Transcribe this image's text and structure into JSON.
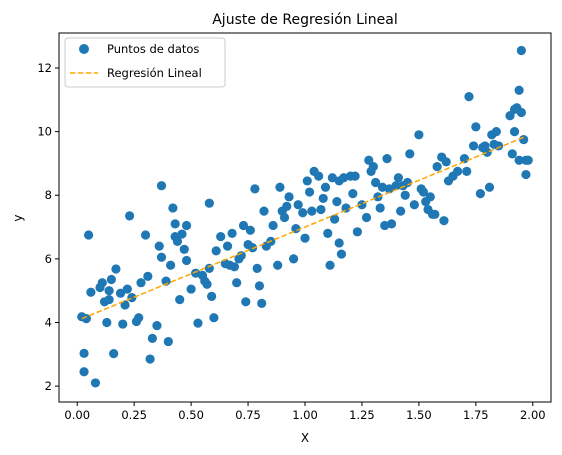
{
  "chart_data": {
    "type": "scatter",
    "title": "Ajuste de Regresión Lineal",
    "xlabel": "X",
    "ylabel": "y",
    "xlim": [
      -0.08,
      2.08
    ],
    "ylim": [
      1.5,
      13.1
    ],
    "xticks": [
      0.0,
      0.25,
      0.5,
      0.75,
      1.0,
      1.25,
      1.5,
      1.75,
      2.0
    ],
    "xtick_labels": [
      "0.00",
      "0.25",
      "0.50",
      "0.75",
      "1.00",
      "1.25",
      "1.50",
      "1.75",
      "2.00"
    ],
    "yticks": [
      2,
      4,
      6,
      8,
      10,
      12
    ],
    "ytick_labels": [
      "2",
      "4",
      "6",
      "8",
      "10",
      "12"
    ],
    "grid": false,
    "legend_position": "upper-left",
    "colors": {
      "points": "#1f77b4",
      "regression": "#ffa500"
    },
    "series": [
      {
        "name": "Puntos de datos",
        "kind": "scatter",
        "points": [
          [
            0.02,
            4.18
          ],
          [
            0.03,
            2.45
          ],
          [
            0.03,
            3.03
          ],
          [
            0.04,
            4.12
          ],
          [
            0.05,
            6.75
          ],
          [
            0.06,
            4.95
          ],
          [
            0.08,
            2.1
          ],
          [
            0.1,
            5.1
          ],
          [
            0.11,
            5.25
          ],
          [
            0.12,
            4.65
          ],
          [
            0.13,
            4.0
          ],
          [
            0.14,
            4.72
          ],
          [
            0.14,
            5.0
          ],
          [
            0.15,
            5.35
          ],
          [
            0.16,
            3.02
          ],
          [
            0.17,
            5.68
          ],
          [
            0.19,
            4.92
          ],
          [
            0.2,
            3.95
          ],
          [
            0.21,
            4.55
          ],
          [
            0.22,
            5.05
          ],
          [
            0.23,
            7.35
          ],
          [
            0.24,
            4.78
          ],
          [
            0.26,
            4.03
          ],
          [
            0.27,
            4.15
          ],
          [
            0.28,
            5.25
          ],
          [
            0.3,
            6.75
          ],
          [
            0.31,
            5.45
          ],
          [
            0.32,
            2.85
          ],
          [
            0.33,
            3.5
          ],
          [
            0.35,
            3.9
          ],
          [
            0.36,
            6.4
          ],
          [
            0.37,
            8.3
          ],
          [
            0.37,
            6.05
          ],
          [
            0.39,
            5.3
          ],
          [
            0.4,
            3.4
          ],
          [
            0.41,
            5.8
          ],
          [
            0.42,
            7.6
          ],
          [
            0.43,
            6.7
          ],
          [
            0.43,
            7.1
          ],
          [
            0.44,
            6.55
          ],
          [
            0.45,
            4.72
          ],
          [
            0.46,
            6.78
          ],
          [
            0.47,
            6.3
          ],
          [
            0.48,
            7.05
          ],
          [
            0.48,
            5.95
          ],
          [
            0.5,
            5.05
          ],
          [
            0.52,
            5.55
          ],
          [
            0.53,
            3.98
          ],
          [
            0.55,
            5.48
          ],
          [
            0.56,
            5.3
          ],
          [
            0.57,
            5.2
          ],
          [
            0.58,
            5.7
          ],
          [
            0.59,
            4.82
          ],
          [
            0.58,
            7.75
          ],
          [
            0.6,
            4.15
          ],
          [
            0.61,
            6.25
          ],
          [
            0.63,
            6.7
          ],
          [
            0.65,
            5.85
          ],
          [
            0.66,
            6.4
          ],
          [
            0.67,
            5.8
          ],
          [
            0.68,
            6.8
          ],
          [
            0.69,
            5.75
          ],
          [
            0.7,
            5.25
          ],
          [
            0.71,
            6.0
          ],
          [
            0.72,
            6.1
          ],
          [
            0.73,
            7.05
          ],
          [
            0.74,
            4.65
          ],
          [
            0.75,
            6.45
          ],
          [
            0.76,
            6.9
          ],
          [
            0.77,
            6.35
          ],
          [
            0.78,
            8.2
          ],
          [
            0.79,
            5.7
          ],
          [
            0.8,
            5.15
          ],
          [
            0.81,
            4.6
          ],
          [
            0.82,
            7.5
          ],
          [
            0.83,
            6.4
          ],
          [
            0.85,
            6.55
          ],
          [
            0.86,
            7.05
          ],
          [
            0.88,
            5.8
          ],
          [
            0.89,
            8.25
          ],
          [
            0.9,
            7.5
          ],
          [
            0.91,
            7.3
          ],
          [
            0.92,
            7.65
          ],
          [
            0.93,
            7.95
          ],
          [
            0.95,
            6.0
          ],
          [
            0.96,
            6.95
          ],
          [
            0.97,
            7.7
          ],
          [
            0.99,
            7.45
          ],
          [
            1.0,
            6.65
          ],
          [
            1.01,
            8.45
          ],
          [
            1.02,
            8.1
          ],
          [
            1.03,
            7.5
          ],
          [
            1.04,
            8.75
          ],
          [
            1.06,
            8.6
          ],
          [
            1.07,
            7.55
          ],
          [
            1.08,
            7.9
          ],
          [
            1.09,
            8.25
          ],
          [
            1.1,
            6.8
          ],
          [
            1.11,
            5.8
          ],
          [
            1.12,
            8.55
          ],
          [
            1.13,
            7.25
          ],
          [
            1.14,
            7.8
          ],
          [
            1.15,
            8.45
          ],
          [
            1.15,
            6.5
          ],
          [
            1.16,
            6.15
          ],
          [
            1.17,
            8.55
          ],
          [
            1.18,
            7.6
          ],
          [
            1.2,
            8.6
          ],
          [
            1.21,
            8.05
          ],
          [
            1.22,
            8.6
          ],
          [
            1.23,
            6.85
          ],
          [
            1.25,
            7.7
          ],
          [
            1.27,
            7.3
          ],
          [
            1.28,
            9.1
          ],
          [
            1.29,
            8.75
          ],
          [
            1.3,
            8.9
          ],
          [
            1.31,
            8.4
          ],
          [
            1.32,
            7.95
          ],
          [
            1.33,
            7.6
          ],
          [
            1.34,
            8.25
          ],
          [
            1.35,
            7.05
          ],
          [
            1.36,
            9.15
          ],
          [
            1.37,
            8.2
          ],
          [
            1.38,
            7.1
          ],
          [
            1.4,
            8.3
          ],
          [
            1.41,
            8.55
          ],
          [
            1.42,
            7.5
          ],
          [
            1.43,
            8.3
          ],
          [
            1.44,
            8.0
          ],
          [
            1.45,
            8.4
          ],
          [
            1.46,
            9.3
          ],
          [
            1.48,
            7.7
          ],
          [
            1.5,
            9.9
          ],
          [
            1.51,
            8.2
          ],
          [
            1.52,
            8.1
          ],
          [
            1.53,
            7.8
          ],
          [
            1.54,
            7.55
          ],
          [
            1.55,
            7.95
          ],
          [
            1.56,
            7.4
          ],
          [
            1.57,
            7.4
          ],
          [
            1.58,
            8.9
          ],
          [
            1.6,
            9.2
          ],
          [
            1.61,
            7.2
          ],
          [
            1.62,
            9.05
          ],
          [
            1.63,
            8.45
          ],
          [
            1.65,
            8.6
          ],
          [
            1.67,
            8.75
          ],
          [
            1.7,
            9.15
          ],
          [
            1.71,
            8.75
          ],
          [
            1.72,
            11.1
          ],
          [
            1.74,
            9.55
          ],
          [
            1.75,
            10.15
          ],
          [
            1.77,
            8.05
          ],
          [
            1.78,
            9.5
          ],
          [
            1.79,
            9.55
          ],
          [
            1.8,
            9.35
          ],
          [
            1.81,
            8.25
          ],
          [
            1.82,
            9.9
          ],
          [
            1.83,
            9.6
          ],
          [
            1.84,
            10.0
          ],
          [
            1.85,
            9.55
          ],
          [
            1.9,
            10.5
          ],
          [
            1.91,
            9.3
          ],
          [
            1.92,
            10.0
          ],
          [
            1.93,
            10.75
          ],
          [
            1.94,
            11.3
          ],
          [
            1.95,
            10.6
          ],
          [
            1.95,
            12.55
          ],
          [
            1.96,
            9.75
          ],
          [
            1.97,
            9.1
          ],
          [
            1.97,
            8.65
          ],
          [
            1.98,
            9.1
          ],
          [
            1.94,
            9.1
          ],
          [
            1.92,
            10.7
          ]
        ]
      },
      {
        "name": "Regresión Lineal",
        "kind": "line",
        "style": "dashed",
        "points": [
          [
            0.02,
            4.12
          ],
          [
            1.97,
            9.85
          ]
        ]
      }
    ]
  }
}
